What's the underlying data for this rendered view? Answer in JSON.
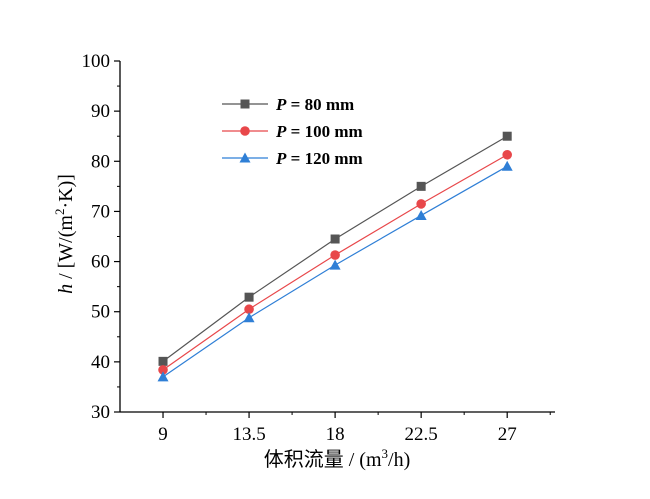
{
  "chart_data": {
    "type": "line",
    "x": [
      9,
      13.5,
      18,
      22.5,
      27
    ],
    "xticks": [
      "9",
      "13.5",
      "18",
      "22.5",
      "27"
    ],
    "yticks": [
      "30",
      "40",
      "50",
      "60",
      "70",
      "80",
      "90",
      "100"
    ],
    "xlim": [
      6.75,
      29.5
    ],
    "ylim": [
      30,
      100
    ],
    "xlabel_cjk": "体积流量",
    "xlabel_rest": " / (m",
    "xlabel_sup": "3",
    "xlabel_end": "/h)",
    "ylabel_var": "h",
    "ylabel_rest": " / [W/(m",
    "ylabel_sup": "2",
    "ylabel_end": "·K)]",
    "legend_position": "top-left",
    "grid": false,
    "series": [
      {
        "name": "P = 80 mm",
        "var": "P",
        "rest": " = 80 mm",
        "color": "#555555",
        "marker": "square",
        "values": [
          40.1,
          52.9,
          64.5,
          75.0,
          85.0
        ]
      },
      {
        "name": "P = 100 mm",
        "var": "P",
        "rest": " = 100 mm",
        "color": "#e8474a",
        "marker": "circle",
        "values": [
          38.4,
          50.5,
          61.3,
          71.5,
          81.3
        ]
      },
      {
        "name": "P = 120 mm",
        "var": "P",
        "rest": " = 120 mm",
        "color": "#2f7fd6",
        "marker": "triangle",
        "values": [
          37.0,
          48.8,
          59.3,
          69.2,
          79.0
        ]
      }
    ]
  }
}
